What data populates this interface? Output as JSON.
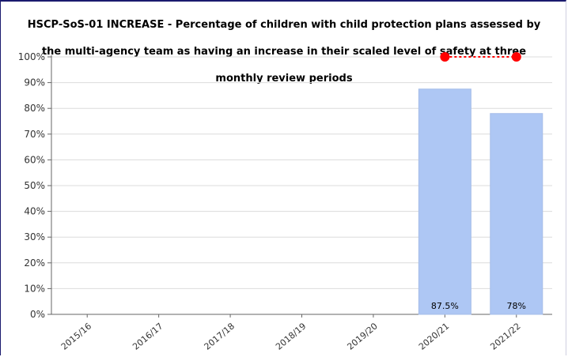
{
  "chart_data": {
    "type": "bar",
    "title": "HSCP-SoS-01 INCREASE - Percentage of children with child protection plans assessed by the multi-agency team as having an increase in their scaled level of safety at three monthly review periods",
    "title_lines": [
      "HSCP-SoS-01 INCREASE - Percentage of children with child protection plans assessed by",
      "the multi-agency team as having an increase in their scaled level of safety at three",
      "monthly review periods"
    ],
    "xlabel": "",
    "ylabel": "",
    "categories": [
      "2015/16",
      "2016/17",
      "2017/18",
      "2018/19",
      "2019/20",
      "2020/21",
      "2021/22"
    ],
    "series": [
      {
        "kind": "bar",
        "values": [
          null,
          null,
          null,
          null,
          null,
          87.5,
          78
        ],
        "data_labels": [
          "",
          "",
          "",
          "",
          "",
          "87.5%",
          "78%"
        ],
        "color": "#aec7f4"
      },
      {
        "kind": "target-line",
        "values": [
          null,
          null,
          null,
          null,
          null,
          100,
          100
        ],
        "color": "#ff0000"
      }
    ],
    "ylim": [
      0,
      100
    ],
    "yticks": [
      0,
      10,
      20,
      30,
      40,
      50,
      60,
      70,
      80,
      90,
      100
    ],
    "ytick_labels": [
      "0%",
      "10%",
      "20%",
      "30%",
      "40%",
      "50%",
      "60%",
      "70%",
      "80%",
      "90%",
      "100%"
    ],
    "grid": true,
    "legend": "none"
  }
}
